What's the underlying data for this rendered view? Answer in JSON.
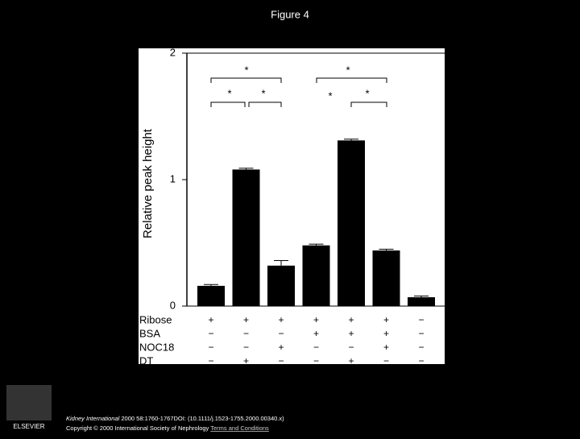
{
  "chart_data": {
    "type": "bar",
    "title": "Figure 4",
    "ylabel": "Relative peak height",
    "values": [
      0.16,
      1.08,
      0.32,
      0.48,
      1.31,
      0.44,
      0.07
    ],
    "errors": [
      0.01,
      0.01,
      0.04,
      0.01,
      0.01,
      0.01,
      0.01
    ],
    "color": "#000000",
    "ylim": [
      0,
      2
    ],
    "yticks": [
      0,
      1,
      2
    ],
    "treatments": [
      {
        "name": "Ribose",
        "values": [
          "+",
          "+",
          "+",
          "+",
          "+",
          "+",
          "−"
        ]
      },
      {
        "name": "BSA",
        "values": [
          "−",
          "−",
          "−",
          "+",
          "+",
          "+",
          "−"
        ]
      },
      {
        "name": "NOC18",
        "values": [
          "−",
          "−",
          "+",
          "−",
          "−",
          "+",
          "−"
        ]
      },
      {
        "name": "DT",
        "values": [
          "−",
          "+",
          "−",
          "−",
          "+",
          "−",
          "−"
        ]
      }
    ],
    "significance": [
      "*",
      "*",
      "*",
      "*",
      "*",
      "*"
    ]
  },
  "footer": {
    "journal": "Kidney International",
    "citation": "2000 58:1760-1767DOI: (10.1111/j.1523-1755.2000.00340.x)",
    "copyright": "Copyright © 2000 International Society of Nephrology",
    "link": "Terms and Conditions",
    "logo": "ELSEVIER"
  }
}
